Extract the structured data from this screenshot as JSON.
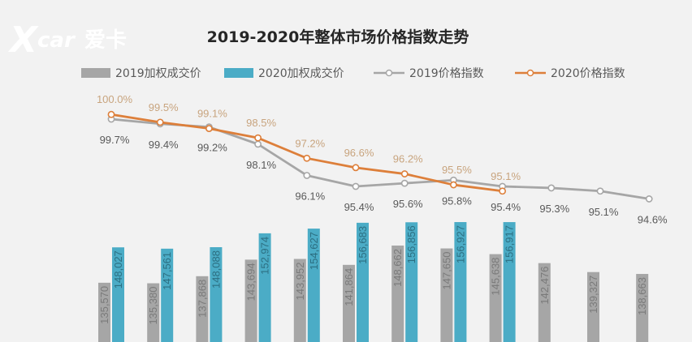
{
  "logo": {
    "text": "X",
    "suffix": "car",
    "chinese": "爱卡",
    "color": "#ffffff"
  },
  "colors": {
    "bar2019": "#a6a6a6",
    "bar2020": "#4bacc6",
    "line2019": "#a6a6a6",
    "line2020": "#dd7f3a",
    "label2019": "#595959",
    "label2020": "#c8a47e",
    "barText2019": "#7a7a7a",
    "barText2020": "#2c6f82"
  },
  "chart_data": {
    "type": "bar+line",
    "title": "2019-2020年整体市场价格指数走势",
    "legend": [
      "2019加权成交价",
      "2020加权成交价",
      "2019价格指数",
      "2020价格指数"
    ],
    "legend_position": "top",
    "grid": false,
    "series": [
      {
        "name": "2019加权成交价",
        "type": "bar",
        "values": [
          135570,
          135380,
          137868,
          143694,
          143952,
          141864,
          148662,
          147650,
          145638,
          142476,
          139327,
          138663
        ],
        "labels": [
          "135,570",
          "135,380",
          "137,868",
          "143,694",
          "143,952",
          "141,864",
          "148,662",
          "147,650",
          "145,638",
          "142,476",
          "139,327",
          "138,663"
        ]
      },
      {
        "name": "2020加权成交价",
        "type": "bar",
        "values": [
          148027,
          147561,
          148088,
          152974,
          154627,
          156683,
          156856,
          156927,
          156917
        ],
        "labels": [
          "148,027",
          "147,561",
          "148,088",
          "152,974",
          "154,627",
          "156,683",
          "156,856",
          "156,927",
          "156,917"
        ]
      },
      {
        "name": "2019价格指数",
        "type": "line",
        "values": [
          99.7,
          99.4,
          99.2,
          98.1,
          96.1,
          95.4,
          95.6,
          95.8,
          95.4,
          95.3,
          95.1,
          94.6
        ],
        "labels": [
          "99.7%",
          "99.4%",
          "99.2%",
          "98.1%",
          "96.1%",
          "95.4%",
          "95.6%",
          "95.8%",
          "95.4%",
          "95.3%",
          "95.1%",
          "94.6%"
        ]
      },
      {
        "name": "2020价格指数",
        "type": "line",
        "values": [
          100.0,
          99.5,
          99.1,
          98.5,
          97.2,
          96.6,
          96.2,
          95.5,
          95.1
        ],
        "labels": [
          "100.0%",
          "99.5%",
          "99.1%",
          "98.5%",
          "97.2%",
          "96.6%",
          "96.2%",
          "95.5%",
          "95.1%"
        ]
      }
    ]
  }
}
